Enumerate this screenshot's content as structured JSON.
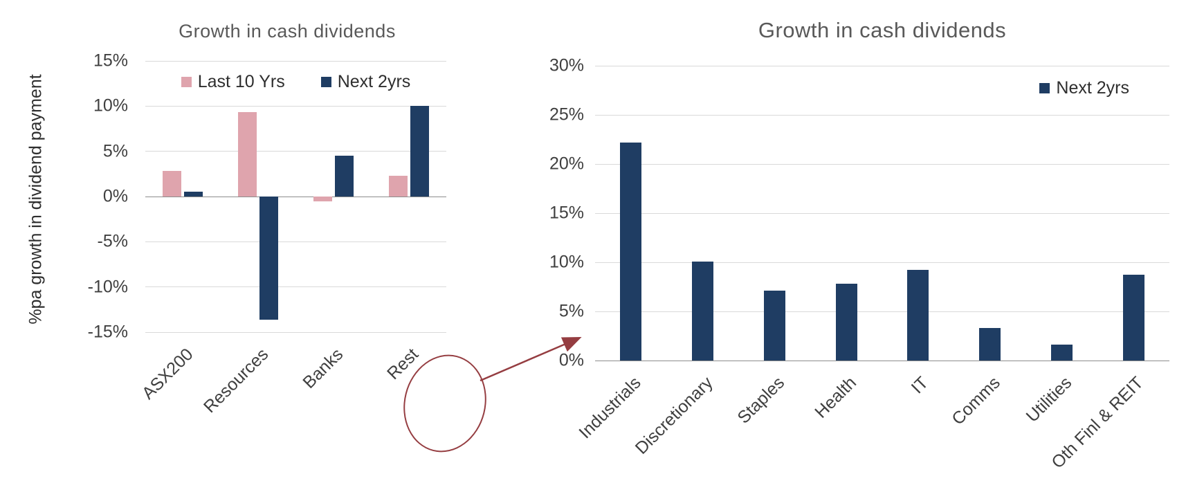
{
  "page": {
    "background": "#ffffff"
  },
  "chart_data": [
    {
      "type": "bar",
      "title": "Growth in cash dividends",
      "ylabel": "%pa growth in dividend payment",
      "xlabel": "",
      "categories": [
        "ASX200",
        "Resources",
        "Banks",
        "Rest"
      ],
      "series": [
        {
          "name": "Last 10 Yrs",
          "color": "#dfa4ad",
          "values": [
            2.8,
            9.3,
            -0.5,
            2.3
          ]
        },
        {
          "name": "Next 2yrs",
          "color": "#1f3d63",
          "values": [
            0.5,
            -13.6,
            4.5,
            10.0
          ]
        }
      ],
      "ylim": [
        -15,
        15
      ],
      "yticks": [
        15,
        10,
        5,
        0,
        -5,
        -10,
        -15
      ],
      "ytick_suffix": "%",
      "grid": true,
      "legend_position": "top-center",
      "axis_line_at": 0
    },
    {
      "type": "bar",
      "title": "Growth in cash dividends",
      "ylabel": "",
      "xlabel": "",
      "categories": [
        "Industrials",
        "Discretionary",
        "Staples",
        "Health",
        "IT",
        "Comms",
        "Utilities",
        "Oth Finl & REIT"
      ],
      "series": [
        {
          "name": "Next 2yrs",
          "color": "#1f3d63",
          "values": [
            22.2,
            10.1,
            7.1,
            7.8,
            9.2,
            3.3,
            1.6,
            8.7
          ]
        }
      ],
      "ylim": [
        0,
        30
      ],
      "yticks": [
        30,
        25,
        20,
        15,
        10,
        5,
        0
      ],
      "ytick_suffix": "%",
      "grid": true,
      "legend_position": "top-right",
      "axis_line_at": 0
    }
  ],
  "annotation": {
    "circled_label": "Rest",
    "points_to": "right chart",
    "color": "#953d41"
  },
  "colors": {
    "title": "#595959",
    "axis_text": "#3f3f3f",
    "gridline": "#d9d9d9",
    "axis_line": "#8c8c8c",
    "pink": "#dfa4ad",
    "navy": "#1f3d63",
    "annotation_red": "#953d41"
  }
}
